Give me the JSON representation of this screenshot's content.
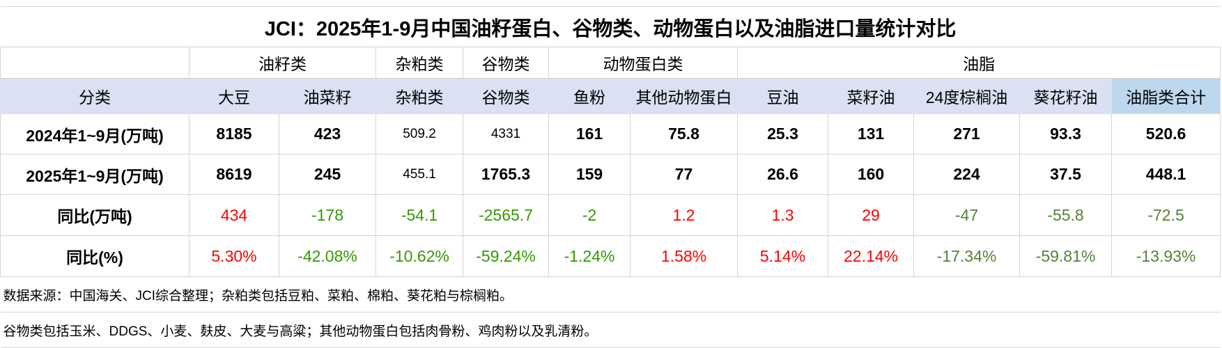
{
  "title": "JCI：2025年1-9月中国油籽蛋白、谷物类、动物蛋白以及油脂进口量统计对比",
  "groups": {
    "oilseed": "油籽类",
    "meal": "杂粕类",
    "grain": "谷物类",
    "animal": "动物蛋白类",
    "oil": "油脂"
  },
  "columns": [
    "分类",
    "大豆",
    "油菜籽",
    "杂粕类",
    "谷物类",
    "鱼粉",
    "其他动物蛋白",
    "豆油",
    "菜籽油",
    "24度棕榈油",
    "葵花籽油",
    "油脂类合计"
  ],
  "rows": [
    {
      "label": "2024年1~9月(万吨)",
      "values": [
        "8185",
        "423",
        "509.2",
        "4331",
        "161",
        "75.8",
        "25.3",
        "131",
        "271",
        "93.3",
        "520.6"
      ]
    },
    {
      "label": "2025年1~9月(万吨)",
      "values": [
        "8619",
        "245",
        "455.1",
        "1765.3",
        "159",
        "77",
        "26.6",
        "160",
        "224",
        "37.5",
        "448.1"
      ]
    },
    {
      "label": "同比(万吨)",
      "values": [
        "434",
        "-178",
        "-54.1",
        "-2565.7",
        "-2",
        "1.2",
        "1.3",
        "29",
        "-47",
        "-55.8",
        "-72.5"
      ]
    },
    {
      "label": "同比(%)",
      "values": [
        "5.30%",
        "-42.08%",
        "-10.62%",
        "-59.24%",
        "-1.24%",
        "1.58%",
        "5.14%",
        "22.14%",
        "-17.34%",
        "-59.81%",
        "-13.93%"
      ]
    }
  ],
  "notes": [
    "数据来源：中国海关、JCI综合整理；杂粕类包括豆粕、菜粕、棉粕、葵花粕与棕榈粕。",
    "谷物类包括玉米、DDGS、小麦、麸皮、大麦与高粱；其他动物蛋白包括肉骨粉、鸡肉粉以及乳清粉。"
  ],
  "colors": {
    "increase": "#ff0000",
    "decrease": "#339900",
    "decrease_oil": "#548235",
    "header_bg": "#d9e1f2",
    "total_header_bg": "#bdd7ee"
  }
}
